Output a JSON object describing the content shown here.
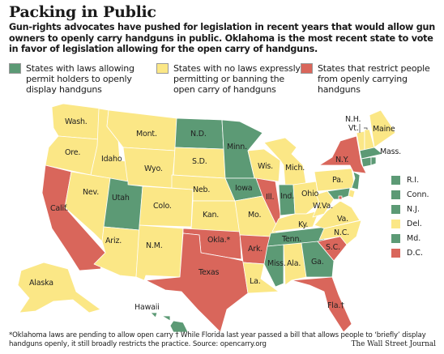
{
  "title": "Packing in Public",
  "intro": "Gun-rights advocates have pushed for legislation in recent years that would allow gun owners to openly carry handguns in public. Oklahoma is the most recent state to vote in favor of legislation allowing for the open carry of handguns.",
  "colors": {
    "permit": "#5c9a75",
    "nolaw": "#fbe786",
    "restrict": "#d9665b"
  },
  "legend": [
    {
      "key": "permit",
      "label": "States with laws allowing permit holders to openly display handguns"
    },
    {
      "key": "nolaw",
      "label": "States with no laws expressly permitting or banning the open carry of handguns"
    },
    {
      "key": "restrict",
      "label": "States that restrict people from openly carrying handguns"
    }
  ],
  "states": {
    "WA": {
      "label": "Wash.",
      "cat": "nolaw"
    },
    "OR": {
      "label": "Ore.",
      "cat": "nolaw"
    },
    "CA": {
      "label": "Calif.",
      "cat": "restrict"
    },
    "ID": {
      "label": "Idaho",
      "cat": "nolaw"
    },
    "NV": {
      "label": "Nev.",
      "cat": "nolaw"
    },
    "MT": {
      "label": "Mont.",
      "cat": "nolaw"
    },
    "WY": {
      "label": "Wyo.",
      "cat": "nolaw"
    },
    "UT": {
      "label": "Utah",
      "cat": "permit"
    },
    "AZ": {
      "label": "Ariz.",
      "cat": "nolaw"
    },
    "CO": {
      "label": "Colo.",
      "cat": "nolaw"
    },
    "NM": {
      "label": "N.M.",
      "cat": "nolaw"
    },
    "ND": {
      "label": "N.D.",
      "cat": "permit"
    },
    "SD": {
      "label": "S.D.",
      "cat": "nolaw"
    },
    "NE": {
      "label": "Neb.",
      "cat": "nolaw"
    },
    "KS": {
      "label": "Kan.",
      "cat": "nolaw"
    },
    "OK": {
      "label": "Okla.*",
      "cat": "restrict"
    },
    "TX": {
      "label": "Texas",
      "cat": "restrict"
    },
    "MN": {
      "label": "Minn.",
      "cat": "permit"
    },
    "IA": {
      "label": "Iowa",
      "cat": "permit"
    },
    "MO": {
      "label": "Mo.",
      "cat": "nolaw"
    },
    "AR": {
      "label": "Ark.",
      "cat": "restrict"
    },
    "LA": {
      "label": "La.",
      "cat": "nolaw"
    },
    "WI": {
      "label": "Wis.",
      "cat": "nolaw"
    },
    "IL": {
      "label": "Ill.",
      "cat": "restrict"
    },
    "MI": {
      "label": "Mich.",
      "cat": "nolaw"
    },
    "IN": {
      "label": "Ind.",
      "cat": "permit"
    },
    "OH": {
      "label": "Ohio",
      "cat": "nolaw"
    },
    "KY": {
      "label": "Ky.",
      "cat": "nolaw"
    },
    "TN": {
      "label": "Tenn.",
      "cat": "permit"
    },
    "MS": {
      "label": "Miss.",
      "cat": "permit"
    },
    "AL": {
      "label": "Ala.",
      "cat": "nolaw"
    },
    "GA": {
      "label": "Ga.",
      "cat": "permit"
    },
    "FL": {
      "label": "Fla.†",
      "cat": "restrict"
    },
    "SC": {
      "label": "S.C.",
      "cat": "restrict"
    },
    "NC": {
      "label": "N.C.",
      "cat": "nolaw"
    },
    "VA": {
      "label": "Va.",
      "cat": "nolaw"
    },
    "WV": {
      "label": "W.Va.",
      "cat": "nolaw"
    },
    "PA": {
      "label": "Pa.",
      "cat": "nolaw"
    },
    "NY": {
      "label": "N.Y.",
      "cat": "restrict"
    },
    "VT": {
      "label": "Vt.",
      "cat": "nolaw"
    },
    "NH": {
      "label": "N.H.",
      "cat": "nolaw"
    },
    "ME": {
      "label": "Maine",
      "cat": "nolaw"
    },
    "MA": {
      "label": "Mass.",
      "cat": "permit"
    },
    "AK": {
      "label": "Alaska",
      "cat": "nolaw"
    },
    "HI": {
      "label": "Hawaii",
      "cat": "permit"
    }
  },
  "small_states": [
    {
      "label": "R.I.",
      "cat": "permit"
    },
    {
      "label": "Conn.",
      "cat": "permit"
    },
    {
      "label": "N.J.",
      "cat": "permit"
    },
    {
      "label": "Del.",
      "cat": "nolaw"
    },
    {
      "label": "Md.",
      "cat": "permit"
    },
    {
      "label": "D.C.",
      "cat": "restrict"
    }
  ],
  "footnote": "*Oklahoma laws are pending to allow open carry   † While Florida last year passed a bill that allows people to ‘briefly’ display handguns openly, it still broadly restricts the practice.   Source: opencarry.org",
  "credit": "The Wall Street Journal"
}
